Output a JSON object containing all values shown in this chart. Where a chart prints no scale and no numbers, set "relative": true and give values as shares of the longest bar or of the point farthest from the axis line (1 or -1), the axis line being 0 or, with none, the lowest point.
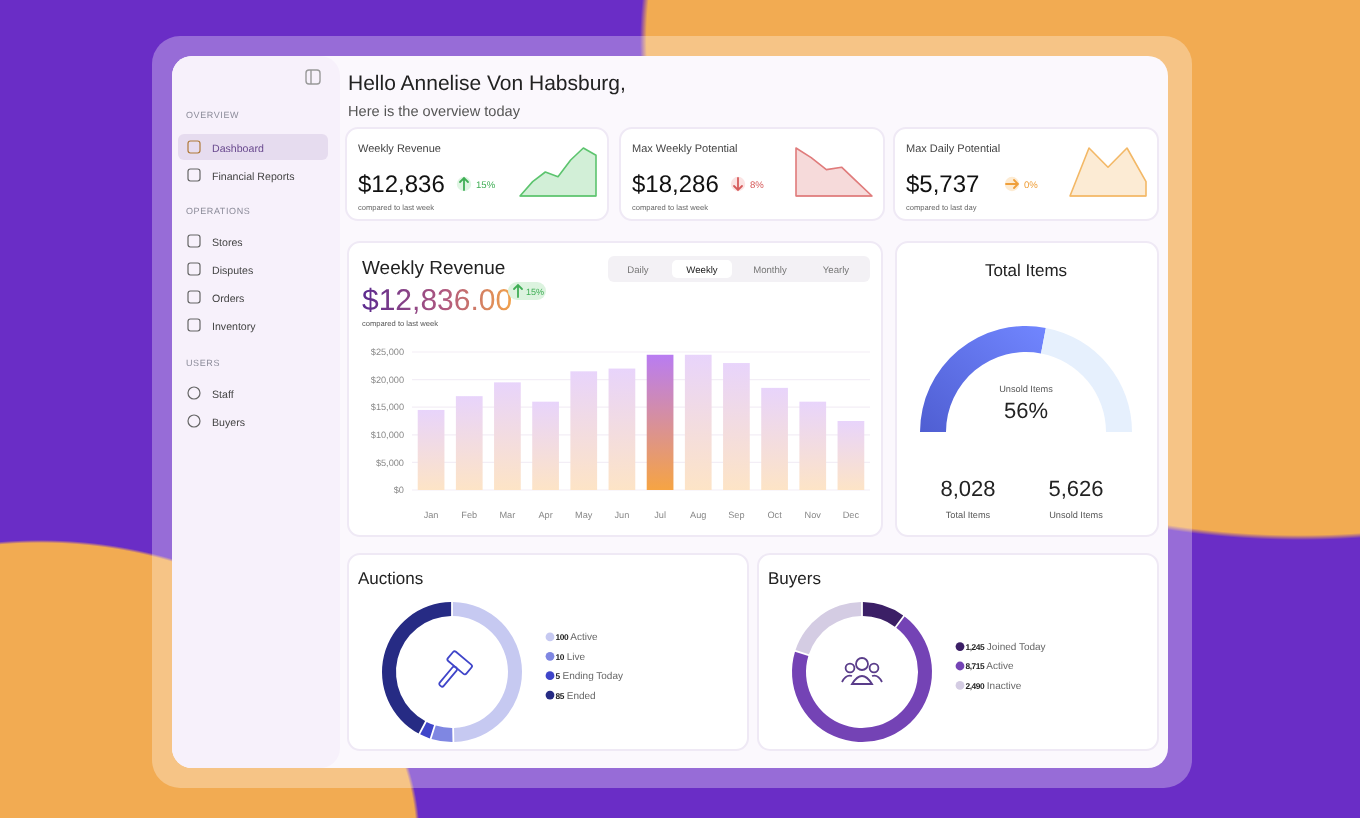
{
  "chart_data": [
    {
      "type": "other",
      "annotations": [
        "OVERVIEW",
        "Dashboard",
        "Financial Reports",
        "OPERATIONS",
        "Stores",
        "Disputes",
        "Orders",
        "Inventory",
        "USERS",
        "Staff",
        "Buyers"
      ]
    },
    {
      "type": "other",
      "title": "Hello Annelise Von Habsburg,",
      "subtitle": "Here is the overview today"
    },
    {
      "type": "area",
      "relative": true,
      "categories": [
        null,
        null,
        null,
        null,
        null,
        null,
        null
      ],
      "series": [
        {
          "color": "#5cc46e",
          "values": [
            0,
            0.3,
            0.5,
            0.4,
            0.75,
            1,
            0.85
          ]
        }
      ],
      "annotations": [
        "Weekly Revenue",
        "$12,836",
        "15%",
        "compared to last week"
      ]
    },
    {
      "type": "area",
      "relative": true,
      "categories": [
        null,
        null,
        null,
        null,
        null,
        null
      ],
      "series": [
        {
          "color": "#e07b7b",
          "values": [
            1,
            0.8,
            0.55,
            0.6,
            0.3,
            0
          ]
        }
      ],
      "annotations": [
        "Max Weekly Potential",
        "$18,286",
        "8%",
        "compared to last week"
      ]
    },
    {
      "type": "area",
      "relative": true,
      "categories": [
        null,
        null,
        null,
        null,
        null
      ],
      "series": [
        {
          "color": "#f3b866",
          "values": [
            0,
            1,
            0.6,
            1,
            0.3
          ]
        }
      ],
      "annotations": [
        "Max Daily Potential",
        "$5,737",
        "0%",
        "compared to last day"
      ]
    },
    {
      "type": "bar",
      "title": "Weekly Revenue",
      "categories": [
        "Jan",
        "Feb",
        "Mar",
        "Apr",
        "May",
        "Jun",
        "Jul",
        "Aug",
        "Sep",
        "Oct",
        "Nov",
        "Dec"
      ],
      "values": [
        14500,
        17000,
        19500,
        16000,
        21500,
        22000,
        24500,
        24500,
        23000,
        18500,
        16000,
        12500
      ],
      "colors": [
        "#e8d4fb",
        "#e8d4fb",
        "#e8d4fb",
        "#e8d4fb",
        "#e8d4fb",
        "#e8d4fb",
        "#b97cf2",
        "#e8d4fb",
        "#e8d4fb",
        "#e8d4fb",
        "#e8d4fb",
        "#e8d4fb"
      ],
      "ylim": [
        0,
        25000
      ],
      "yticks": [
        {
          "value": 0,
          "label": "$0"
        },
        {
          "value": 5000,
          "label": "$5,000"
        },
        {
          "value": 10000,
          "label": "$10,000"
        },
        {
          "value": 15000,
          "label": "$15,000"
        },
        {
          "value": 20000,
          "label": "$20,000"
        },
        {
          "value": 25000,
          "label": "$25,000"
        }
      ],
      "grid": "y",
      "annotations": [
        "$12,836.00",
        "15%",
        "compared to last week",
        "Daily",
        "Weekly",
        "Monthly",
        "Yearly"
      ]
    },
    {
      "type": "donut",
      "title": "Total Items",
      "categories": [
        "Unsold Items",
        null
      ],
      "values": [
        56,
        44
      ],
      "colors": [
        "#5b6cf2",
        "#e6f0fd"
      ],
      "value_labels": [
        "56%",
        null
      ],
      "annotations": [
        "8,028",
        "Total Items",
        "5,626",
        "Unsold Items"
      ]
    },
    {
      "type": "donut",
      "title": "Auctions",
      "categories": [
        "Active",
        "Live",
        "Ending Today",
        "Ended"
      ],
      "values": [
        100,
        10,
        5,
        85
      ],
      "colors": [
        "#c6c9f1",
        "#7f87e2",
        "#3f45c9",
        "#262b84"
      ],
      "value_labels": [
        "100",
        "10",
        "5",
        "85"
      ],
      "legend": "right"
    },
    {
      "type": "donut",
      "title": "Buyers",
      "categories": [
        "Joined Today",
        "Active",
        "Inactive"
      ],
      "values": [
        1245,
        8715,
        2490
      ],
      "colors": [
        "#3b1f66",
        "#7443b5",
        "#d4cce3"
      ],
      "value_labels": [
        "1,245",
        "8,715",
        "2,490"
      ],
      "legend": "right"
    }
  ]
}
